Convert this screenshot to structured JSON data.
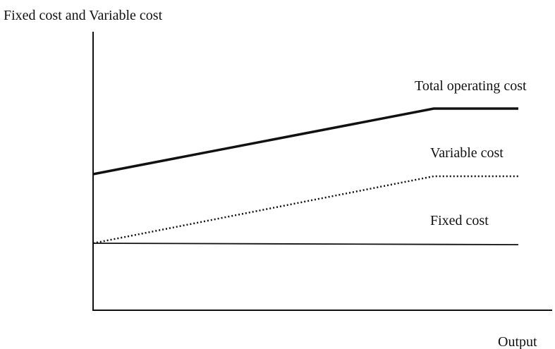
{
  "title": "Fixed cost and Variable cost",
  "x_axis_label": "Output",
  "lines": [
    {
      "label": "Total operating cost"
    },
    {
      "label": "Variable cost"
    },
    {
      "label": "Fixed cost"
    }
  ]
}
